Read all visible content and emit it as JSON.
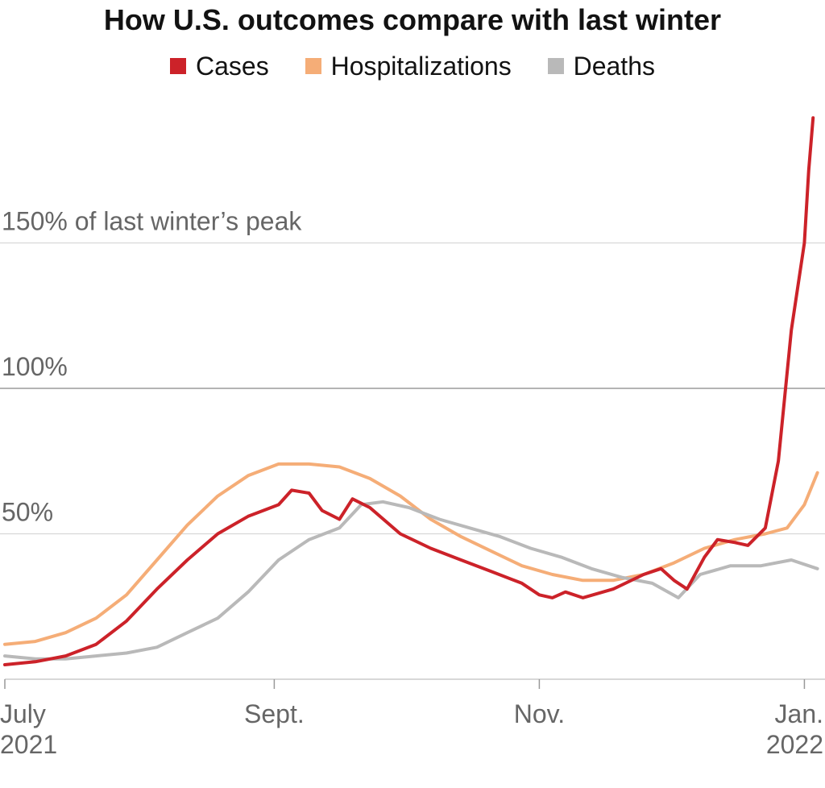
{
  "chart_data": {
    "type": "line",
    "title": "How U.S. outcomes compare with last winter",
    "ylabel": "",
    "xlabel": "",
    "y_unit": "% of last winter's peak",
    "ylim": [
      0,
      200
    ],
    "xlim": [
      "2021-07-01",
      "2022-01-05"
    ],
    "grid": true,
    "legend_position": "top-center",
    "y_ticks": [
      {
        "value": 50,
        "label": "50%"
      },
      {
        "value": 100,
        "label": "100%"
      },
      {
        "value": 150,
        "label": "150% of last winter’s peak"
      }
    ],
    "x_ticks": [
      {
        "date": "2021-07-01",
        "line1": "July",
        "line2": "2021"
      },
      {
        "date": "2021-09-01",
        "line1": "Sept.",
        "line2": ""
      },
      {
        "date": "2021-11-01",
        "line1": "Nov.",
        "line2": ""
      },
      {
        "date": "2022-01-01",
        "line1": "Jan.",
        "line2": "2022"
      }
    ],
    "series": [
      {
        "name": "Cases",
        "color": "#cc2229",
        "points": [
          [
            "2021-07-01",
            5
          ],
          [
            "2021-07-08",
            6
          ],
          [
            "2021-07-15",
            8
          ],
          [
            "2021-07-22",
            12
          ],
          [
            "2021-07-29",
            20
          ],
          [
            "2021-08-05",
            31
          ],
          [
            "2021-08-12",
            41
          ],
          [
            "2021-08-19",
            50
          ],
          [
            "2021-08-26",
            56
          ],
          [
            "2021-09-02",
            60
          ],
          [
            "2021-09-05",
            65
          ],
          [
            "2021-09-09",
            64
          ],
          [
            "2021-09-12",
            58
          ],
          [
            "2021-09-16",
            55
          ],
          [
            "2021-09-19",
            62
          ],
          [
            "2021-09-23",
            59
          ],
          [
            "2021-09-30",
            50
          ],
          [
            "2021-10-07",
            45
          ],
          [
            "2021-10-14",
            41
          ],
          [
            "2021-10-21",
            37
          ],
          [
            "2021-10-28",
            33
          ],
          [
            "2021-11-01",
            29
          ],
          [
            "2021-11-04",
            28
          ],
          [
            "2021-11-07",
            30
          ],
          [
            "2021-11-11",
            28
          ],
          [
            "2021-11-18",
            31
          ],
          [
            "2021-11-25",
            36
          ],
          [
            "2021-11-29",
            38
          ],
          [
            "2021-12-02",
            34
          ],
          [
            "2021-12-05",
            31
          ],
          [
            "2021-12-09",
            42
          ],
          [
            "2021-12-12",
            48
          ],
          [
            "2021-12-16",
            47
          ],
          [
            "2021-12-19",
            46
          ],
          [
            "2021-12-23",
            52
          ],
          [
            "2021-12-26",
            75
          ],
          [
            "2021-12-29",
            120
          ],
          [
            "2022-01-01",
            150
          ],
          [
            "2022-01-02",
            175
          ],
          [
            "2022-01-03",
            193
          ]
        ]
      },
      {
        "name": "Hospitalizations",
        "color": "#f5ad77",
        "points": [
          [
            "2021-07-01",
            12
          ],
          [
            "2021-07-08",
            13
          ],
          [
            "2021-07-15",
            16
          ],
          [
            "2021-07-22",
            21
          ],
          [
            "2021-07-29",
            29
          ],
          [
            "2021-08-05",
            41
          ],
          [
            "2021-08-12",
            53
          ],
          [
            "2021-08-19",
            63
          ],
          [
            "2021-08-26",
            70
          ],
          [
            "2021-09-02",
            74
          ],
          [
            "2021-09-09",
            74
          ],
          [
            "2021-09-16",
            73
          ],
          [
            "2021-09-23",
            69
          ],
          [
            "2021-09-30",
            63
          ],
          [
            "2021-10-07",
            55
          ],
          [
            "2021-10-14",
            49
          ],
          [
            "2021-10-21",
            44
          ],
          [
            "2021-10-28",
            39
          ],
          [
            "2021-11-04",
            36
          ],
          [
            "2021-11-11",
            34
          ],
          [
            "2021-11-18",
            34
          ],
          [
            "2021-11-25",
            36
          ],
          [
            "2021-12-02",
            40
          ],
          [
            "2021-12-09",
            45
          ],
          [
            "2021-12-16",
            48
          ],
          [
            "2021-12-23",
            50
          ],
          [
            "2021-12-28",
            52
          ],
          [
            "2022-01-01",
            60
          ],
          [
            "2022-01-04",
            71
          ]
        ]
      },
      {
        "name": "Deaths",
        "color": "#b9b9b9",
        "points": [
          [
            "2021-07-01",
            8
          ],
          [
            "2021-07-08",
            7
          ],
          [
            "2021-07-15",
            7
          ],
          [
            "2021-07-22",
            8
          ],
          [
            "2021-07-29",
            9
          ],
          [
            "2021-08-05",
            11
          ],
          [
            "2021-08-12",
            16
          ],
          [
            "2021-08-19",
            21
          ],
          [
            "2021-08-26",
            30
          ],
          [
            "2021-09-02",
            41
          ],
          [
            "2021-09-09",
            48
          ],
          [
            "2021-09-16",
            52
          ],
          [
            "2021-09-21",
            60
          ],
          [
            "2021-09-26",
            61
          ],
          [
            "2021-10-02",
            59
          ],
          [
            "2021-10-09",
            55
          ],
          [
            "2021-10-16",
            52
          ],
          [
            "2021-10-23",
            49
          ],
          [
            "2021-10-30",
            45
          ],
          [
            "2021-11-06",
            42
          ],
          [
            "2021-11-13",
            38
          ],
          [
            "2021-11-20",
            35
          ],
          [
            "2021-11-27",
            33
          ],
          [
            "2021-12-03",
            28
          ],
          [
            "2021-12-08",
            36
          ],
          [
            "2021-12-15",
            39
          ],
          [
            "2021-12-22",
            39
          ],
          [
            "2021-12-29",
            41
          ],
          [
            "2022-01-04",
            38
          ]
        ]
      }
    ]
  }
}
